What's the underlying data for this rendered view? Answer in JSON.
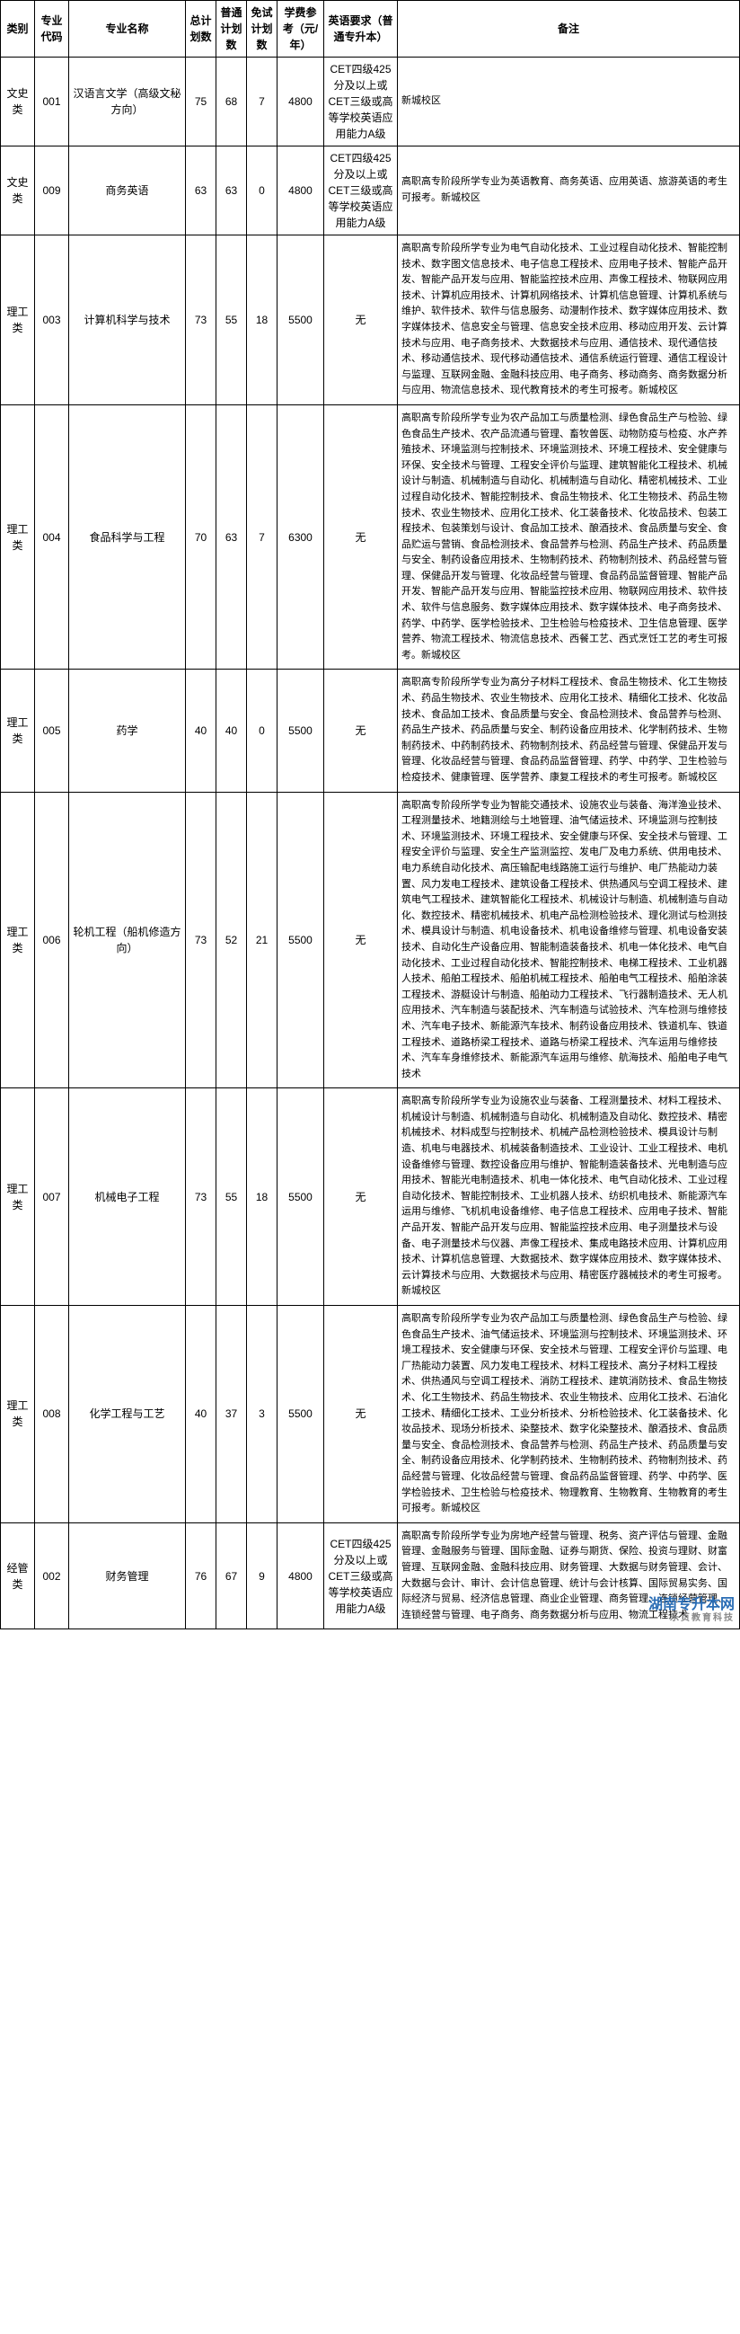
{
  "table": {
    "headers": {
      "category": "类别",
      "code": "专业代码",
      "name": "专业名称",
      "total": "总计划数",
      "normal": "普通计划数",
      "exempt": "免试计划数",
      "fee": "学费参考（元/年）",
      "english": "英语要求（普通专升本）",
      "remark": "备注"
    },
    "rows": [
      {
        "category": "文史类",
        "code": "001",
        "name": "汉语言文学（高级文秘方向）",
        "total": "75",
        "normal": "68",
        "exempt": "7",
        "fee": "4800",
        "english": "CET四级425分及以上或CET三级或高等学校英语应用能力A级",
        "remark": "新城校区"
      },
      {
        "category": "文史类",
        "code": "009",
        "name": "商务英语",
        "total": "63",
        "normal": "63",
        "exempt": "0",
        "fee": "4800",
        "english": "CET四级425分及以上或CET三级或高等学校英语应用能力A级",
        "remark": "高职高专阶段所学专业为英语教育、商务英语、应用英语、旅游英语的考生可报考。新城校区"
      },
      {
        "category": "理工类",
        "code": "003",
        "name": "计算机科学与技术",
        "total": "73",
        "normal": "55",
        "exempt": "18",
        "fee": "5500",
        "english": "无",
        "remark": "高职高专阶段所学专业为电气自动化技术、工业过程自动化技术、智能控制技术、数字图文信息技术、电子信息工程技术、应用电子技术、智能产品开发、智能产品开发与应用、智能监控技术应用、声像工程技术、物联网应用技术、计算机应用技术、计算机网络技术、计算机信息管理、计算机系统与维护、软件技术、软件与信息服务、动漫制作技术、数字媒体应用技术、数字媒体技术、信息安全与管理、信息安全技术应用、移动应用开发、云计算技术与应用、电子商务技术、大数据技术与应用、通信技术、现代通信技术、移动通信技术、现代移动通信技术、通信系统运行管理、通信工程设计与监理、互联网金融、金融科技应用、电子商务、移动商务、商务数据分析与应用、物流信息技术、现代教育技术的考生可报考。新城校区"
      },
      {
        "category": "理工类",
        "code": "004",
        "name": "食品科学与工程",
        "total": "70",
        "normal": "63",
        "exempt": "7",
        "fee": "6300",
        "english": "无",
        "remark": "高职高专阶段所学专业为农产品加工与质量检测、绿色食品生产与检验、绿色食品生产技术、农产品流通与管理、畜牧兽医、动物防疫与检疫、水产养殖技术、环境监测与控制技术、环境监测技术、环境工程技术、安全健康与环保、安全技术与管理、工程安全评价与监理、建筑智能化工程技术、机械设计与制造、机械制造与自动化、机械制造与自动化、精密机械技术、工业过程自动化技术、智能控制技术、食品生物技术、化工生物技术、药品生物技术、农业生物技术、应用化工技术、化工装备技术、化妆品技术、包装工程技术、包装策划与设计、食品加工技术、酿酒技术、食品质量与安全、食品贮运与营销、食品检测技术、食品营养与检测、药品生产技术、药品质量与安全、制药设备应用技术、生物制药技术、药物制剂技术、药品经营与管理、保健品开发与管理、化妆品经营与管理、食品药品监督管理、智能产品开发、智能产品开发与应用、智能监控技术应用、物联网应用技术、软件技术、软件与信息服务、数字媒体应用技术、数字媒体技术、电子商务技术、药学、中药学、医学检验技术、卫生检验与检疫技术、卫生信息管理、医学营养、物流工程技术、物流信息技术、西餐工艺、西式烹饪工艺的考生可报考。新城校区"
      },
      {
        "category": "理工类",
        "code": "005",
        "name": "药学",
        "total": "40",
        "normal": "40",
        "exempt": "0",
        "fee": "5500",
        "english": "无",
        "remark": "高职高专阶段所学专业为高分子材料工程技术、食品生物技术、化工生物技术、药品生物技术、农业生物技术、应用化工技术、精细化工技术、化妆品技术、食品加工技术、食品质量与安全、食品检测技术、食品营养与检测、药品生产技术、药品质量与安全、制药设备应用技术、化学制药技术、生物制药技术、中药制药技术、药物制剂技术、药品经营与管理、保健品开发与管理、化妆品经营与管理、食品药品监督管理、药学、中药学、卫生检验与检疫技术、健康管理、医学营养、康复工程技术的考生可报考。新城校区"
      },
      {
        "category": "理工类",
        "code": "006",
        "name": "轮机工程（船机修造方向）",
        "total": "73",
        "normal": "52",
        "exempt": "21",
        "fee": "5500",
        "english": "无",
        "remark": "高职高专阶段所学专业为智能交通技术、设施农业与装备、海洋渔业技术、工程测量技术、地籍测绘与土地管理、油气储运技术、环境监测与控制技术、环境监测技术、环境工程技术、安全健康与环保、安全技术与管理、工程安全评价与监理、安全生产监测监控、发电厂及电力系统、供用电技术、电力系统自动化技术、高压输配电线路施工运行与维护、电厂热能动力装置、风力发电工程技术、建筑设备工程技术、供热通风与空调工程技术、建筑电气工程技术、建筑智能化工程技术、机械设计与制造、机械制造与自动化、数控技术、精密机械技术、机电产品检测检验技术、理化测试与检测技术、模具设计与制造、机电设备技术、机电设备维修与管理、机电设备安装技术、自动化生产设备应用、智能制造装备技术、机电一体化技术、电气自动化技术、工业过程自动化技术、智能控制技术、电梯工程技术、工业机器人技术、船舶工程技术、船舶机械工程技术、船舶电气工程技术、船舶涂装工程技术、游艇设计与制造、船舶动力工程技术、飞行器制造技术、无人机应用技术、汽车制造与装配技术、汽车制造与试验技术、汽车检测与维修技术、汽车电子技术、新能源汽车技术、制药设备应用技术、铁道机车、铁道工程技术、道路桥梁工程技术、道路与桥梁工程技术、汽车运用与维修技术、汽车车身维修技术、新能源汽车运用与维修、航海技术、船舶电子电气技术"
      },
      {
        "category": "理工类",
        "code": "007",
        "name": "机械电子工程",
        "total": "73",
        "normal": "55",
        "exempt": "18",
        "fee": "5500",
        "english": "无",
        "remark": "高职高专阶段所学专业为设施农业与装备、工程测量技术、材料工程技术、机械设计与制造、机械制造与自动化、机械制造及自动化、数控技术、精密机械技术、材料成型与控制技术、机械产品检测检验技术、模具设计与制造、机电与电器技术、机械装备制造技术、工业设计、工业工程技术、电机设备维修与管理、数控设备应用与维护、智能制造装备技术、光电制造与应用技术、智能光电制造技术、机电一体化技术、电气自动化技术、工业过程自动化技术、智能控制技术、工业机器人技术、纺织机电技术、新能源汽车运用与维修、飞机机电设备维修、电子信息工程技术、应用电子技术、智能产品开发、智能产品开发与应用、智能监控技术应用、电子测量技术与设备、电子测量技术与仪器、声像工程技术、集成电路技术应用、计算机应用技术、计算机信息管理、大数据技术、数字媒体应用技术、数字媒体技术、云计算技术与应用、大数据技术与应用、精密医疗器械技术的考生可报考。新城校区"
      },
      {
        "category": "理工类",
        "code": "008",
        "name": "化学工程与工艺",
        "total": "40",
        "normal": "37",
        "exempt": "3",
        "fee": "5500",
        "english": "无",
        "remark": "高职高专阶段所学专业为农产品加工与质量检测、绿色食品生产与检验、绿色食品生产技术、油气储运技术、环境监测与控制技术、环境监测技术、环境工程技术、安全健康与环保、安全技术与管理、工程安全评价与监理、电厂热能动力装置、风力发电工程技术、材料工程技术、高分子材料工程技术、供热通风与空调工程技术、消防工程技术、建筑消防技术、食品生物技术、化工生物技术、药品生物技术、农业生物技术、应用化工技术、石油化工技术、精细化工技术、工业分析技术、分析检验技术、化工装备技术、化妆品技术、现场分析技术、染整技术、数字化染整技术、酿酒技术、食品质量与安全、食品检测技术、食品营养与检测、药品生产技术、药品质量与安全、制药设备应用技术、化学制药技术、生物制药技术、药物制剂技术、药品经营与管理、化妆品经营与管理、食品药品监督管理、药学、中药学、医学检验技术、卫生检验与检疫技术、物理教育、生物教育、生物教育的考生可报考。新城校区"
      },
      {
        "category": "经管类",
        "code": "002",
        "name": "财务管理",
        "total": "76",
        "normal": "67",
        "exempt": "9",
        "fee": "4800",
        "english": "CET四级425分及以上或CET三级或高等学校英语应用能力A级",
        "remark": "高职高专阶段所学专业为房地产经营与管理、税务、资产评估与管理、金融管理、金融服务与管理、国际金融、证券与期货、保险、投资与理财、财富管理、互联网金融、金融科技应用、财务管理、大数据与财务管理、会计、大数据与会计、审计、会计信息管理、统计与会计核算、国际贸易实务、国际经济与贸易、经济信息管理、商业企业管理、商务管理、连锁经营管理、连锁经营与管理、电子商务、商务数据分析与应用、物流工程技术"
      }
    ]
  },
  "watermark": {
    "main": "湖南专升本网",
    "sub": "乐贞教育科技"
  },
  "colors": {
    "border": "#000000",
    "text": "#000000",
    "watermark_main": "#2a6db5",
    "watermark_sub": "#888888",
    "background": "#ffffff"
  }
}
